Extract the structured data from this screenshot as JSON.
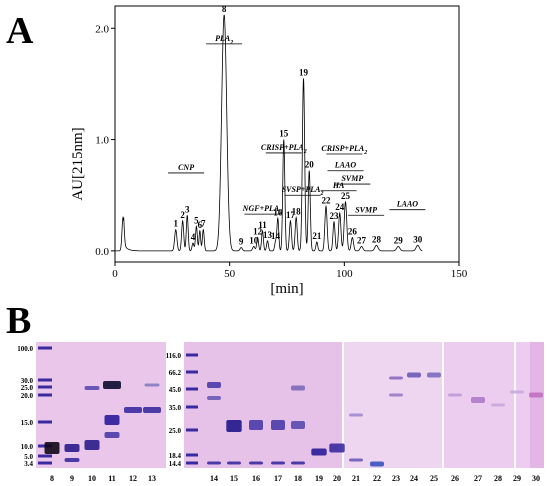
{
  "panels": {
    "a": "A",
    "b": "B"
  },
  "chart_data": [
    {
      "type": "line",
      "panel": "A",
      "xlabel": "[min]",
      "ylabel": "AU[215nm]",
      "xlim": [
        0,
        150
      ],
      "ylim": [
        -0.1,
        2.2
      ],
      "xticks": [
        0,
        50,
        100,
        150
      ],
      "yticks": [
        0.0,
        1.0,
        2.0
      ],
      "ytick_labels": [
        "0.0",
        "1.0",
        "2.0"
      ],
      "baseline": 0.0,
      "peaks": [
        {
          "t": 3.5,
          "h": 0.3,
          "w": 0.45
        },
        {
          "t": 26.5,
          "h": 0.19,
          "w": 0.5,
          "label": "1"
        },
        {
          "t": 29.5,
          "h": 0.27,
          "w": 0.45,
          "label": "2"
        },
        {
          "t": 31.5,
          "h": 0.32,
          "w": 0.4,
          "label": "3"
        },
        {
          "t": 34.0,
          "h": 0.07,
          "w": 0.4,
          "label": "4"
        },
        {
          "t": 35.5,
          "h": 0.22,
          "w": 0.4,
          "label": "5"
        },
        {
          "t": 37.0,
          "h": 0.18,
          "w": 0.35,
          "label": "6"
        },
        {
          "t": 38.5,
          "h": 0.19,
          "w": 0.4,
          "label": "7"
        },
        {
          "t": 47.6,
          "h": 2.12,
          "w": 1.1,
          "label": "8"
        },
        {
          "t": 55.0,
          "h": 0.03,
          "w": 0.5,
          "label": "9"
        },
        {
          "t": 60.5,
          "h": 0.04,
          "w": 0.5,
          "label": "10"
        },
        {
          "t": 64.3,
          "h": 0.18,
          "w": 0.4,
          "label": "11"
        },
        {
          "t": 62.2,
          "h": 0.12,
          "w": 0.4,
          "label": "12"
        },
        {
          "t": 66.5,
          "h": 0.09,
          "w": 0.4,
          "label": "13"
        },
        {
          "t": 70.0,
          "h": 0.08,
          "w": 0.4,
          "label": "14"
        },
        {
          "t": 73.6,
          "h": 1.0,
          "w": 0.45,
          "label": "15"
        },
        {
          "t": 71.0,
          "h": 0.29,
          "w": 0.4,
          "label": "16"
        },
        {
          "t": 76.5,
          "h": 0.27,
          "w": 0.45,
          "label": "17"
        },
        {
          "t": 79.0,
          "h": 0.3,
          "w": 0.45,
          "label": "18"
        },
        {
          "t": 82.2,
          "h": 1.55,
          "w": 0.5,
          "label": "19"
        },
        {
          "t": 84.7,
          "h": 0.72,
          "w": 0.45,
          "label": "20"
        },
        {
          "t": 88.0,
          "h": 0.08,
          "w": 0.4,
          "label": "21"
        },
        {
          "t": 92.0,
          "h": 0.4,
          "w": 0.5,
          "label": "22"
        },
        {
          "t": 95.5,
          "h": 0.26,
          "w": 0.45,
          "label": "23"
        },
        {
          "t": 98.0,
          "h": 0.34,
          "w": 0.5,
          "label": "24"
        },
        {
          "t": 100.5,
          "h": 0.44,
          "w": 0.55,
          "label": "25"
        },
        {
          "t": 103.5,
          "h": 0.12,
          "w": 0.5,
          "label": "26"
        },
        {
          "t": 107.5,
          "h": 0.04,
          "w": 0.6,
          "label": "27"
        },
        {
          "t": 114.0,
          "h": 0.05,
          "w": 0.7,
          "label": "28"
        },
        {
          "t": 123.5,
          "h": 0.04,
          "w": 0.7,
          "label": "29"
        },
        {
          "t": 132.0,
          "h": 0.05,
          "w": 0.7,
          "label": "30"
        }
      ],
      "annotations": [
        {
          "text": "CNP",
          "t": 31.0,
          "level": 0.7
        },
        {
          "text": "PLA",
          "sub": "2",
          "t": 47.6,
          "level": 1.86
        },
        {
          "text": "NGF+PLA",
          "sub": "2",
          "t": 64.3,
          "level": 0.33
        },
        {
          "text": "CRISP+PLA",
          "sub": "2",
          "t": 73.6,
          "level": 0.88
        },
        {
          "text": "SVSP+PLA",
          "sub": "2",
          "t": 81.8,
          "level": 0.5
        },
        {
          "text": "CRISP+PLA",
          "sub": "2",
          "t": 100.0,
          "level": 0.87
        },
        {
          "text": "LAAO",
          "t": 100.5,
          "level": 0.72
        },
        {
          "text": "HA",
          "t": 97.5,
          "level": 0.54
        },
        {
          "text": "SVMP",
          "t": 103.5,
          "level": 0.6
        },
        {
          "text": "SVMP",
          "t": 109.5,
          "level": 0.32
        },
        {
          "text": "LAAO",
          "t": 127.5,
          "level": 0.37
        }
      ]
    },
    {
      "type": "gel",
      "panel": "B",
      "gels": [
        {
          "marker_labels": [
            "100.0",
            "30.0",
            "25.0",
            "20.0",
            "15.0",
            "10.0",
            "5.0",
            "3.4"
          ],
          "lanes": [
            "8",
            "9",
            "10",
            "11",
            "12",
            "13"
          ]
        },
        {
          "marker_labels": [
            "116.0",
            "66.2",
            "45.0",
            "35.0",
            "25.0",
            "18.4",
            "14.4"
          ],
          "lanes": [
            "14",
            "15",
            "16",
            "17",
            "18",
            "19",
            "20",
            "21",
            "22",
            "23",
            "24",
            "25",
            "26",
            "27",
            "28",
            "29",
            "30"
          ]
        }
      ]
    }
  ]
}
